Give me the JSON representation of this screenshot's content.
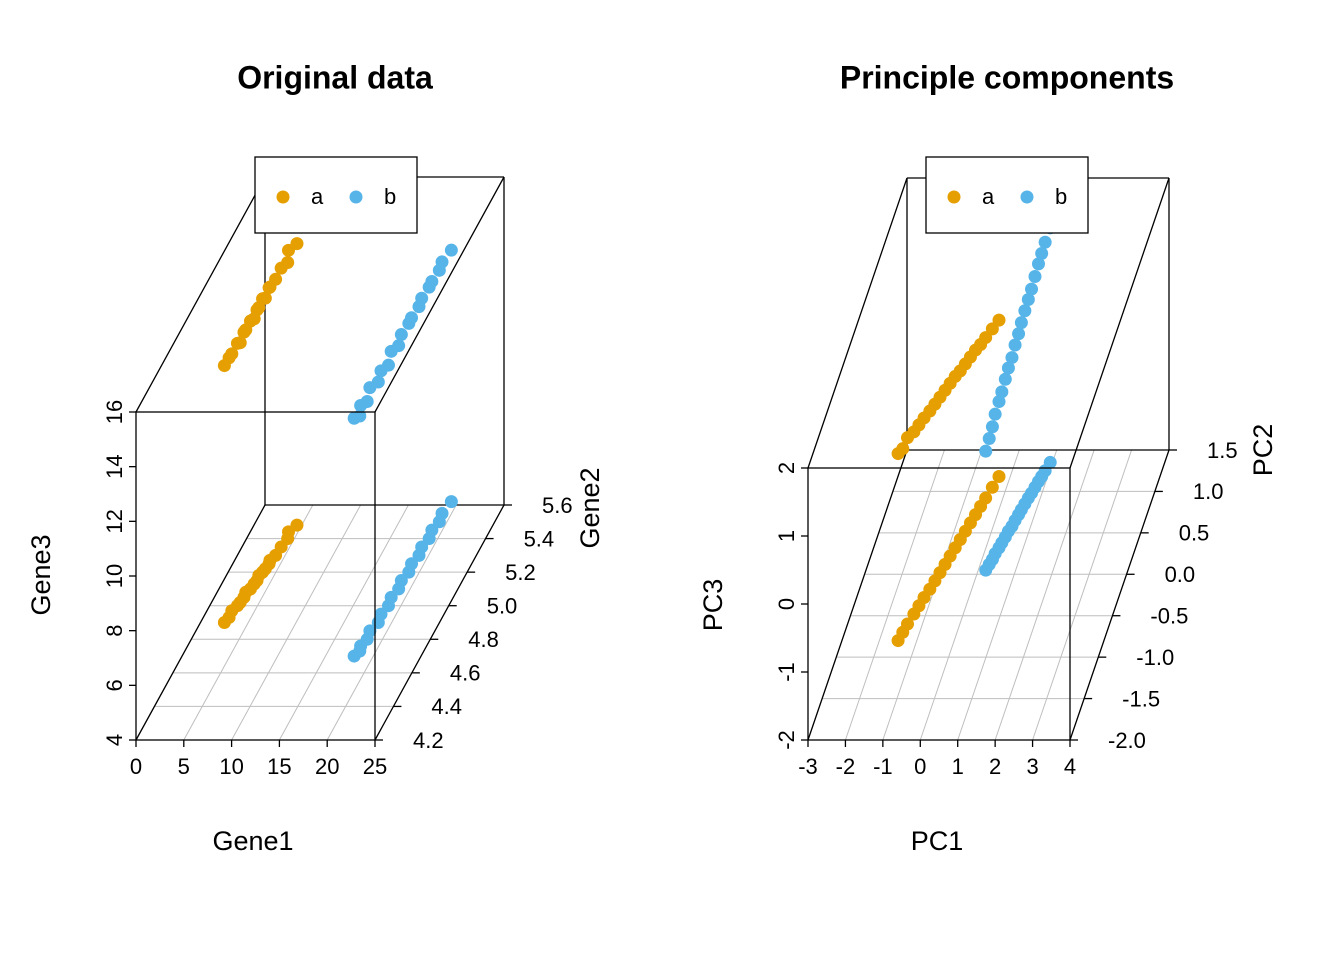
{
  "chart_data": [
    {
      "type": "scatter3d",
      "title": "Original data",
      "xlabel": "Gene1",
      "ylabel": "Gene2",
      "zlabel": "Gene3",
      "xlim": [
        0,
        25
      ],
      "xticks": [
        0,
        5,
        10,
        15,
        20,
        25
      ],
      "ylim": [
        4.2,
        5.6
      ],
      "yticks": [
        {
          "value": 4.2,
          "label": "4.2"
        },
        {
          "value": 4.4,
          "label": "4.4"
        },
        {
          "value": 4.6,
          "label": "4.6"
        },
        {
          "value": 4.8,
          "label": "4.8"
        },
        {
          "value": 5.0,
          "label": "5.0"
        },
        {
          "value": 5.2,
          "label": "5.2"
        },
        {
          "value": 5.4,
          "label": "5.4"
        },
        {
          "value": 5.6,
          "label": "5.6"
        }
      ],
      "zlim": [
        4,
        16
      ],
      "zticks": [
        4,
        6,
        8,
        10,
        12,
        14,
        16
      ],
      "grid": true,
      "legend": "top",
      "series": [
        {
          "name": "a",
          "color": "#e69f00",
          "x": [
            2.5,
            2.7,
            2.6,
            2.9,
            3.0,
            3.1,
            3.0,
            3.3,
            3.4,
            3.5,
            3.4,
            3.6,
            3.7,
            3.8,
            3.7,
            4.0,
            4.1,
            4.3,
            4.0,
            4.5
          ],
          "y": [
            4.9,
            4.93,
            4.97,
            5.0,
            5.02,
            5.05,
            5.08,
            5.1,
            5.13,
            5.15,
            5.18,
            5.2,
            5.22,
            5.25,
            5.27,
            5.3,
            5.35,
            5.4,
            5.44,
            5.48
          ],
          "z": [
            13.4,
            13.5,
            13.4,
            13.6,
            13.5,
            13.7,
            13.6,
            13.8,
            13.7,
            13.9,
            13.8,
            14.0,
            13.9,
            14.1,
            14.0,
            14.1,
            14.2,
            14.1,
            14.3,
            14.3
          ]
        },
        {
          "name": "b",
          "color": "#56b4e9",
          "x": [
            18.0,
            18.3,
            18.1,
            18.4,
            18.2,
            18.6,
            18.4,
            18.7,
            18.5,
            18.8,
            18.6,
            18.9,
            18.7,
            19.0,
            18.8,
            19.1,
            18.9,
            19.2,
            19.0,
            19.3
          ],
          "y": [
            4.7,
            4.73,
            4.76,
            4.8,
            4.85,
            4.9,
            4.95,
            5.0,
            5.05,
            5.1,
            5.15,
            5.2,
            5.25,
            5.3,
            5.35,
            5.4,
            5.45,
            5.5,
            5.55,
            5.62
          ],
          "z": [
            12.7,
            12.6,
            12.8,
            12.7,
            12.9,
            12.8,
            12.9,
            12.8,
            13.0,
            12.9,
            13.0,
            13.1,
            13.0,
            13.1,
            13.1,
            13.2,
            13.1,
            13.2,
            13.2,
            13.2
          ]
        }
      ]
    },
    {
      "type": "scatter3d",
      "title": "Principle components",
      "xlabel": "PC1",
      "ylabel": "PC2",
      "zlabel": "PC3",
      "xlim": [
        -3,
        4
      ],
      "xticks": [
        -3,
        -2,
        -1,
        0,
        1,
        2,
        3,
        4
      ],
      "ylim": [
        -2.0,
        1.5
      ],
      "yticks": [
        {
          "value": -2.0,
          "label": "-2.0"
        },
        {
          "value": -1.5,
          "label": "-1.5"
        },
        {
          "value": -1.0,
          "label": "-1.0"
        },
        {
          "value": -0.5,
          "label": "-0.5"
        },
        {
          "value": 0.0,
          "label": "0.0"
        },
        {
          "value": 0.5,
          "label": "0.5"
        },
        {
          "value": 1.0,
          "label": "1.0"
        },
        {
          "value": 1.5,
          "label": "1.5"
        }
      ],
      "zlim": [
        -2,
        2
      ],
      "zticks": [
        -2,
        -1,
        0,
        1,
        2
      ],
      "grid": true,
      "legend": "top",
      "series": [
        {
          "name": "a",
          "color": "#e69f00",
          "x": [
            -1.5,
            -1.45,
            -1.4,
            -1.32,
            -1.26,
            -1.2,
            -1.12,
            -1.06,
            -1.0,
            -0.94,
            -0.88,
            -0.82,
            -0.76,
            -0.7,
            -0.64,
            -0.58,
            -0.52,
            -0.46,
            -0.38,
            -0.3
          ],
          "y": [
            -0.8,
            -0.7,
            -0.6,
            -0.48,
            -0.38,
            -0.28,
            -0.18,
            -0.08,
            0.02,
            0.12,
            0.22,
            0.32,
            0.42,
            0.52,
            0.62,
            0.72,
            0.82,
            0.92,
            1.05,
            1.18
          ],
          "z": [
            0.75,
            0.7,
            0.74,
            0.68,
            0.66,
            0.64,
            0.62,
            0.6,
            0.58,
            0.56,
            0.54,
            0.52,
            0.48,
            0.46,
            0.44,
            0.42,
            0.38,
            0.36,
            0.33,
            0.3
          ]
        },
        {
          "name": "b",
          "color": "#56b4e9",
          "x": [
            0.2,
            0.24,
            0.28,
            0.3,
            0.35,
            0.38,
            0.42,
            0.45,
            0.5,
            0.53,
            0.57,
            0.6,
            0.64,
            0.68,
            0.72,
            0.76,
            0.8,
            0.84,
            0.88,
            0.94
          ],
          "y": [
            0.05,
            0.12,
            0.18,
            0.25,
            0.32,
            0.38,
            0.45,
            0.52,
            0.58,
            0.65,
            0.72,
            0.78,
            0.85,
            0.92,
            0.98,
            1.05,
            1.12,
            1.18,
            1.25,
            1.35
          ],
          "z": [
            -0.25,
            -0.15,
            -0.05,
            0.05,
            0.15,
            0.22,
            0.32,
            0.4,
            0.48,
            0.58,
            0.66,
            0.75,
            0.84,
            0.92,
            1.0,
            1.1,
            1.2,
            1.28,
            1.36,
            1.45
          ]
        }
      ]
    }
  ]
}
